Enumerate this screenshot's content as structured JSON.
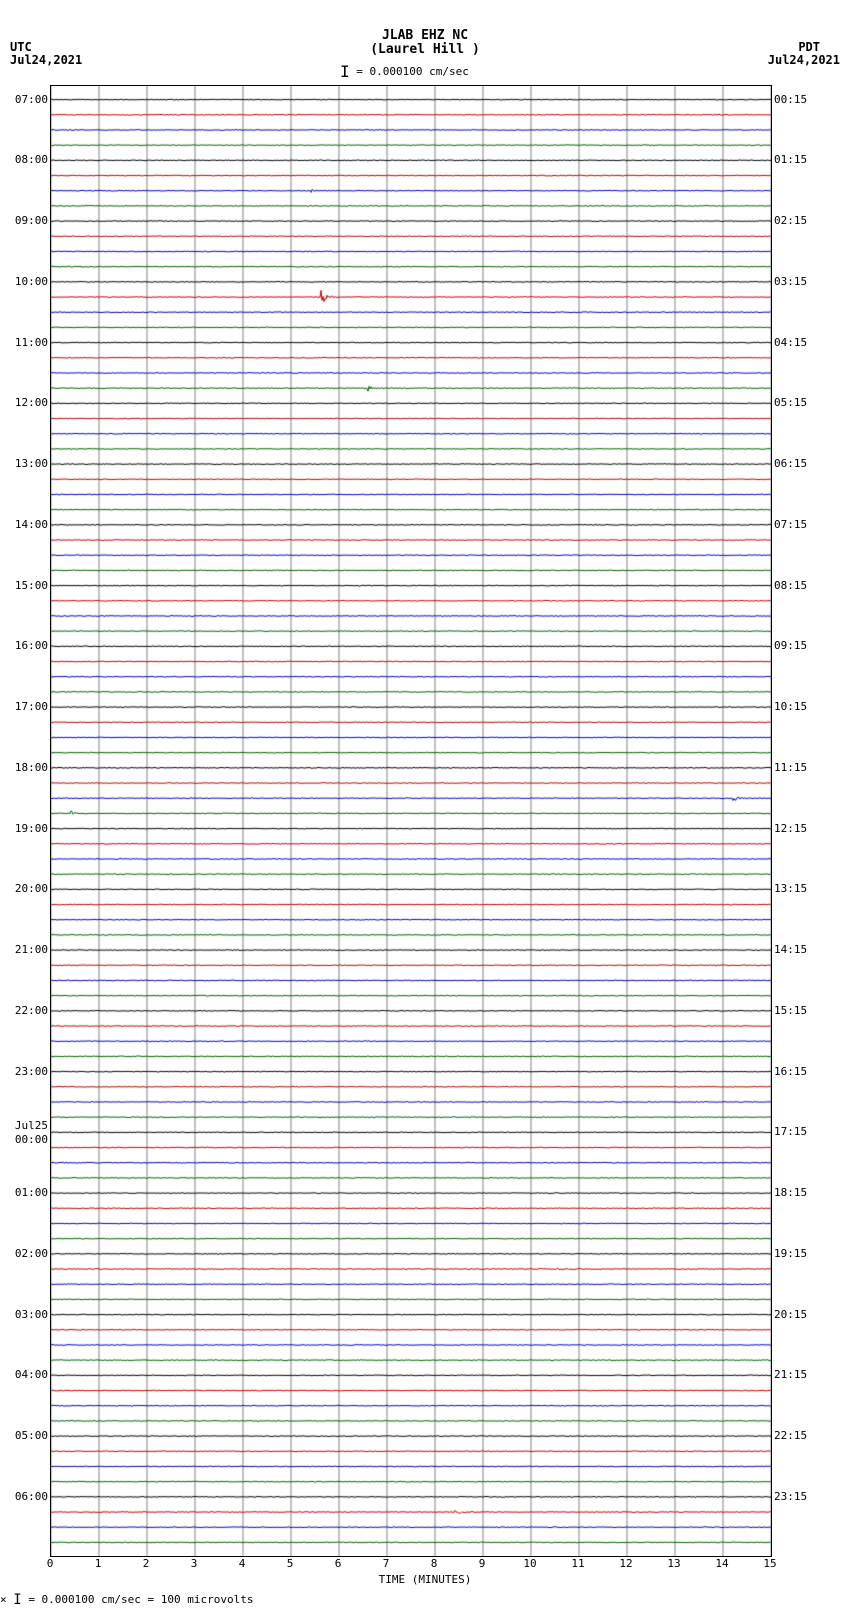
{
  "header": {
    "station": "JLAB EHZ NC",
    "location": "(Laurel Hill )",
    "scale_text": "= 0.000100 cm/sec",
    "left_tz": "UTC",
    "left_date": "Jul24,2021",
    "right_tz": "PDT",
    "right_date": "Jul24,2021"
  },
  "plot": {
    "x_axis_label": "TIME (MINUTES)",
    "x_ticks": [
      0,
      1,
      2,
      3,
      4,
      5,
      6,
      7,
      8,
      9,
      10,
      11,
      12,
      13,
      14,
      15
    ],
    "n_traces": 96,
    "colors": [
      "#000000",
      "#c00000",
      "#0000c0",
      "#006000"
    ],
    "background": "#ffffff",
    "grid_color": "#808080",
    "left_hour_labels": [
      "07:00",
      "08:00",
      "09:00",
      "10:00",
      "11:00",
      "12:00",
      "13:00",
      "14:00",
      "15:00",
      "16:00",
      "17:00",
      "18:00",
      "19:00",
      "20:00",
      "21:00",
      "22:00",
      "23:00",
      "",
      "00:00",
      "01:00",
      "02:00",
      "03:00",
      "04:00",
      "05:00",
      "06:00"
    ],
    "left_date_break": "Jul25",
    "right_hour_labels": [
      "00:15",
      "01:15",
      "02:15",
      "03:15",
      "04:15",
      "05:15",
      "06:15",
      "07:15",
      "08:15",
      "09:15",
      "10:15",
      "11:15",
      "12:15",
      "13:15",
      "14:15",
      "15:15",
      "16:15",
      "17:15",
      "18:15",
      "19:15",
      "20:15",
      "21:15",
      "22:15",
      "23:15"
    ],
    "noise_amp": 0.8,
    "events": [
      {
        "trace": 6,
        "x": 5.4,
        "w": 0.3,
        "amp": 5
      },
      {
        "trace": 13,
        "x": 5.6,
        "w": 0.4,
        "amp": 18
      },
      {
        "trace": 19,
        "x": 6.6,
        "w": 0.3,
        "amp": 7
      },
      {
        "trace": 46,
        "x": 14.2,
        "w": 0.5,
        "amp": 6
      },
      {
        "trace": 47,
        "x": 0.4,
        "w": 0.3,
        "amp": 6
      },
      {
        "trace": 77,
        "x": 10.5,
        "w": 3.0,
        "amp": 2
      },
      {
        "trace": 93,
        "x": 8.4,
        "w": 0.8,
        "amp": 4
      }
    ]
  },
  "footer": {
    "text": "= 0.000100 cm/sec =    100 microvolts",
    "prefix": "×"
  }
}
